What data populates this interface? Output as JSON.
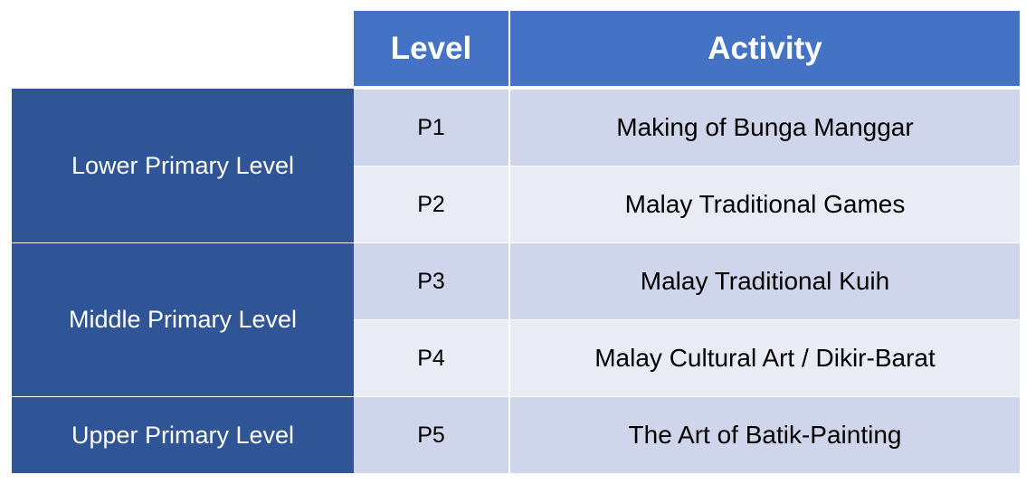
{
  "table": {
    "headers": {
      "level": "Level",
      "activity": "Activity"
    },
    "groups": [
      "Lower Primary Level",
      "Middle Primary Level",
      "Upper Primary Level"
    ],
    "rows": [
      {
        "level": "P1",
        "activity": "Making of Bunga Manggar"
      },
      {
        "level": "P2",
        "activity": "Malay Traditional Games"
      },
      {
        "level": "P3",
        "activity": "Malay Traditional Kuih"
      },
      {
        "level": "P4",
        "activity": "Malay Cultural Art / Dikir-Barat"
      },
      {
        "level": "P5",
        "activity": "The Art of Batik-Painting"
      }
    ],
    "colors": {
      "header": "#4472c4",
      "group": "#2f5597",
      "row_odd": "#cfd5ea",
      "row_even": "#e9ebf5"
    }
  }
}
